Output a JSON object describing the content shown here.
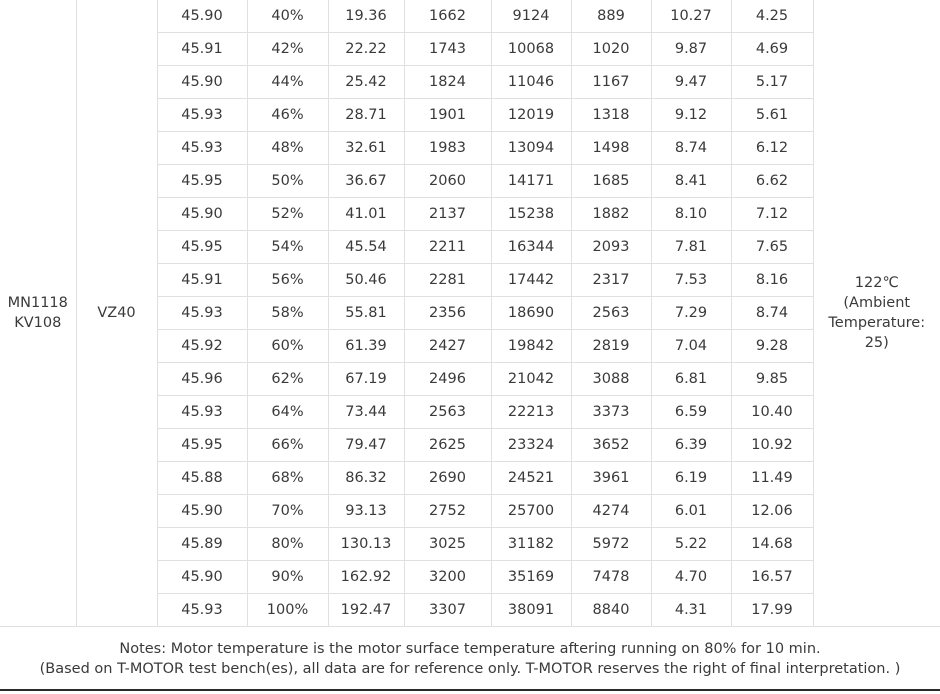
{
  "motor_model_line1": "MN1118",
  "motor_model_line2": "KV108",
  "propeller": "VZ40",
  "max_temperature": {
    "line1": "122℃",
    "line2": "(Ambient",
    "line3": "Temperature:",
    "line4": "25)"
  },
  "rows": [
    [
      "45.90",
      "40%",
      "19.36",
      "1662",
      "9124",
      "889",
      "10.27",
      "4.25"
    ],
    [
      "45.91",
      "42%",
      "22.22",
      "1743",
      "10068",
      "1020",
      "9.87",
      "4.69"
    ],
    [
      "45.90",
      "44%",
      "25.42",
      "1824",
      "11046",
      "1167",
      "9.47",
      "5.17"
    ],
    [
      "45.93",
      "46%",
      "28.71",
      "1901",
      "12019",
      "1318",
      "9.12",
      "5.61"
    ],
    [
      "45.93",
      "48%",
      "32.61",
      "1983",
      "13094",
      "1498",
      "8.74",
      "6.12"
    ],
    [
      "45.95",
      "50%",
      "36.67",
      "2060",
      "14171",
      "1685",
      "8.41",
      "6.62"
    ],
    [
      "45.90",
      "52%",
      "41.01",
      "2137",
      "15238",
      "1882",
      "8.10",
      "7.12"
    ],
    [
      "45.95",
      "54%",
      "45.54",
      "2211",
      "16344",
      "2093",
      "7.81",
      "7.65"
    ],
    [
      "45.91",
      "56%",
      "50.46",
      "2281",
      "17442",
      "2317",
      "7.53",
      "8.16"
    ],
    [
      "45.93",
      "58%",
      "55.81",
      "2356",
      "18690",
      "2563",
      "7.29",
      "8.74"
    ],
    [
      "45.92",
      "60%",
      "61.39",
      "2427",
      "19842",
      "2819",
      "7.04",
      "9.28"
    ],
    [
      "45.96",
      "62%",
      "67.19",
      "2496",
      "21042",
      "3088",
      "6.81",
      "9.85"
    ],
    [
      "45.93",
      "64%",
      "73.44",
      "2563",
      "22213",
      "3373",
      "6.59",
      "10.40"
    ],
    [
      "45.95",
      "66%",
      "79.47",
      "2625",
      "23324",
      "3652",
      "6.39",
      "10.92"
    ],
    [
      "45.88",
      "68%",
      "86.32",
      "2690",
      "24521",
      "3961",
      "6.19",
      "11.49"
    ],
    [
      "45.90",
      "70%",
      "93.13",
      "2752",
      "25700",
      "4274",
      "6.01",
      "12.06"
    ],
    [
      "45.89",
      "80%",
      "130.13",
      "3025",
      "31182",
      "5972",
      "5.22",
      "14.68"
    ],
    [
      "45.90",
      "90%",
      "162.92",
      "3200",
      "35169",
      "7478",
      "4.70",
      "16.57"
    ],
    [
      "45.93",
      "100%",
      "192.47",
      "3307",
      "38091",
      "8840",
      "4.31",
      "17.99"
    ]
  ],
  "notes": {
    "line1": "Notes: Motor temperature is the motor surface temperature aftering running on 80% for 10 min.",
    "line2": "(Based on T-MOTOR test bench(es), all data are for reference only. T-MOTOR reserves the right of final interpretation. )"
  }
}
